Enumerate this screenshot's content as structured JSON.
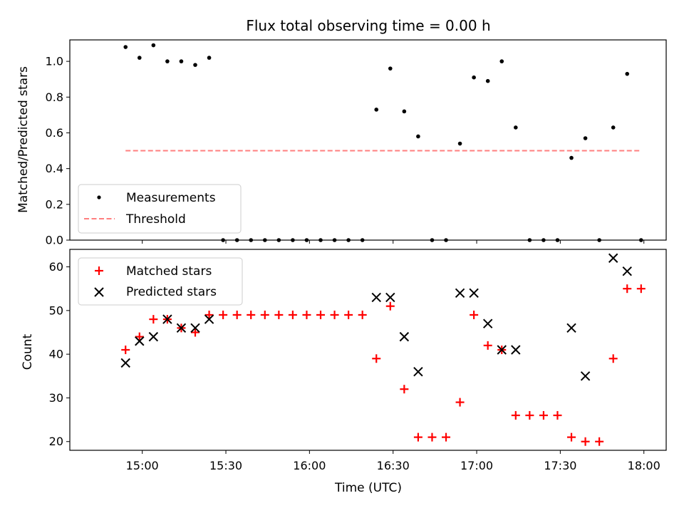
{
  "chart_data": [
    {
      "type": "scatter",
      "title": "Flux total observing time = 0.00 h",
      "xlabel": "",
      "ylabel": "Matched/Predicted stars",
      "ylim": [
        0,
        1.12
      ],
      "yticks": [
        "0.0",
        "0.2",
        "0.4",
        "0.6",
        "0.8",
        "1.0"
      ],
      "legend": {
        "placement": "lower-left",
        "entries": [
          "Measurements",
          "Threshold"
        ]
      },
      "series": [
        {
          "name": "Measurements",
          "marker": "dot",
          "color": "#000000",
          "points": [
            [
              "14:54",
              1.08
            ],
            [
              "14:59",
              1.02
            ],
            [
              "15:04",
              1.09
            ],
            [
              "15:09",
              1.0
            ],
            [
              "15:14",
              1.0
            ],
            [
              "15:19",
              0.98
            ],
            [
              "15:24",
              1.02
            ],
            [
              "15:29",
              0.0
            ],
            [
              "15:34",
              0.0
            ],
            [
              "15:39",
              0.0
            ],
            [
              "15:44",
              0.0
            ],
            [
              "15:49",
              0.0
            ],
            [
              "15:54",
              0.0
            ],
            [
              "15:59",
              0.0
            ],
            [
              "16:04",
              0.0
            ],
            [
              "16:09",
              0.0
            ],
            [
              "16:14",
              0.0
            ],
            [
              "16:19",
              0.0
            ],
            [
              "16:24",
              0.73
            ],
            [
              "16:29",
              0.96
            ],
            [
              "16:34",
              0.72
            ],
            [
              "16:39",
              0.58
            ],
            [
              "16:44",
              0.0
            ],
            [
              "16:49",
              0.0
            ],
            [
              "16:54",
              0.54
            ],
            [
              "16:59",
              0.91
            ],
            [
              "17:04",
              0.89
            ],
            [
              "17:09",
              1.0
            ],
            [
              "17:14",
              0.63
            ],
            [
              "17:19",
              0.0
            ],
            [
              "17:24",
              0.0
            ],
            [
              "17:29",
              0.0
            ],
            [
              "17:34",
              0.46
            ],
            [
              "17:39",
              0.57
            ],
            [
              "17:44",
              0.0
            ],
            [
              "17:49",
              0.63
            ],
            [
              "17:54",
              0.93
            ],
            [
              "17:59",
              0.0
            ]
          ]
        },
        {
          "name": "Threshold",
          "line": "dashed",
          "color": "#ff7f7f",
          "points": [
            [
              "14:54",
              0.5
            ],
            [
              "17:59",
              0.5
            ]
          ]
        }
      ]
    },
    {
      "type": "scatter",
      "title": "",
      "xlabel": "Time (UTC)",
      "ylabel": "Count",
      "ylim": [
        18,
        64
      ],
      "yticks": [
        "20",
        "30",
        "40",
        "50",
        "60"
      ],
      "xticks": [
        "15:00",
        "15:30",
        "16:00",
        "16:30",
        "17:00",
        "17:30",
        "18:00"
      ],
      "xlim": [
        "14:34",
        "18:08"
      ],
      "legend": {
        "placement": "top-left",
        "entries": [
          "Matched stars",
          "Predicted stars"
        ]
      },
      "series": [
        {
          "name": "Matched stars",
          "marker": "plus",
          "color": "#ff0000",
          "points": [
            [
              "14:54",
              41
            ],
            [
              "14:59",
              44
            ],
            [
              "15:04",
              48
            ],
            [
              "15:09",
              48
            ],
            [
              "15:14",
              46
            ],
            [
              "15:19",
              45
            ],
            [
              "15:24",
              49
            ],
            [
              "15:29",
              49
            ],
            [
              "15:34",
              49
            ],
            [
              "15:39",
              49
            ],
            [
              "15:44",
              49
            ],
            [
              "15:49",
              49
            ],
            [
              "15:54",
              49
            ],
            [
              "15:59",
              49
            ],
            [
              "16:04",
              49
            ],
            [
              "16:09",
              49
            ],
            [
              "16:14",
              49
            ],
            [
              "16:19",
              49
            ],
            [
              "16:24",
              39
            ],
            [
              "16:29",
              51
            ],
            [
              "16:34",
              32
            ],
            [
              "16:39",
              21
            ],
            [
              "16:44",
              21
            ],
            [
              "16:49",
              21
            ],
            [
              "16:54",
              29
            ],
            [
              "16:59",
              49
            ],
            [
              "17:04",
              42
            ],
            [
              "17:09",
              41
            ],
            [
              "17:14",
              26
            ],
            [
              "17:19",
              26
            ],
            [
              "17:24",
              26
            ],
            [
              "17:29",
              26
            ],
            [
              "17:34",
              21
            ],
            [
              "17:39",
              20
            ],
            [
              "17:44",
              20
            ],
            [
              "17:49",
              39
            ],
            [
              "17:54",
              55
            ],
            [
              "17:59",
              55
            ]
          ]
        },
        {
          "name": "Predicted stars",
          "marker": "x",
          "color": "#000000",
          "points": [
            [
              "14:54",
              38
            ],
            [
              "14:59",
              43
            ],
            [
              "15:04",
              44
            ],
            [
              "15:09",
              48
            ],
            [
              "15:14",
              46
            ],
            [
              "15:19",
              46
            ],
            [
              "15:24",
              48
            ],
            [
              "16:24",
              53
            ],
            [
              "16:29",
              53
            ],
            [
              "16:34",
              44
            ],
            [
              "16:39",
              36
            ],
            [
              "16:54",
              54
            ],
            [
              "16:59",
              54
            ],
            [
              "17:04",
              47
            ],
            [
              "17:09",
              41
            ],
            [
              "17:14",
              41
            ],
            [
              "17:34",
              46
            ],
            [
              "17:39",
              35
            ],
            [
              "17:49",
              62
            ],
            [
              "17:54",
              59
            ]
          ]
        }
      ]
    }
  ]
}
